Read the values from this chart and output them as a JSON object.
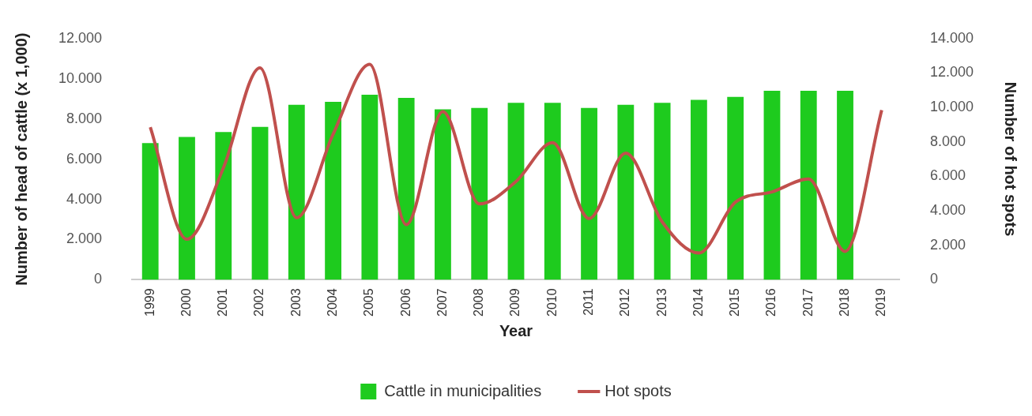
{
  "chart_data": {
    "type": "bar",
    "xlabel": "Year",
    "ylabel": "Number of head of cattle (x 1,000)",
    "y2label": "Number of hot spots",
    "categories": [
      "1999",
      "2000",
      "2001",
      "2002",
      "2003",
      "2004",
      "2005",
      "2006",
      "2007",
      "2008",
      "2009",
      "2010",
      "2011",
      "2012",
      "2013",
      "2014",
      "2015",
      "2016",
      "2017",
      "2018",
      "2019"
    ],
    "series": [
      {
        "name": "Cattle in municipalities",
        "color": "#1ecb1e",
        "values": [
          6800,
          7100,
          7350,
          7600,
          8700,
          8850,
          9200,
          9050,
          8480,
          8550,
          8800,
          8800,
          8550,
          8700,
          8800,
          8950,
          9100,
          9400,
          9400,
          9400,
          null
        ]
      },
      {
        "name": "Hot spots",
        "type": "line",
        "axis": "y2",
        "color": "#c0504d",
        "values": [
          8850,
          2350,
          6500,
          12300,
          3600,
          8450,
          12500,
          3200,
          9750,
          4400,
          5700,
          7950,
          3550,
          7350,
          3350,
          1550,
          4500,
          5100,
          5850,
          1650,
          9850
        ]
      }
    ],
    "ylim": [
      0,
      12000
    ],
    "yticks": [
      {
        "value": 0,
        "label": "0"
      },
      {
        "value": 2000,
        "label": "2.000"
      },
      {
        "value": 4000,
        "label": "4.000"
      },
      {
        "value": 6000,
        "label": "6.000"
      },
      {
        "value": 8000,
        "label": "8.000"
      },
      {
        "value": 10000,
        "label": "10.000"
      },
      {
        "value": 12000,
        "label": "12.000"
      }
    ],
    "y2lim": [
      0,
      14000
    ],
    "y2ticks": [
      {
        "value": 0,
        "label": "0"
      },
      {
        "value": 2000,
        "label": "2.000"
      },
      {
        "value": 4000,
        "label": "4.000"
      },
      {
        "value": 6000,
        "label": "6.000"
      },
      {
        "value": 8000,
        "label": "8.000"
      },
      {
        "value": 10000,
        "label": "10.000"
      },
      {
        "value": 12000,
        "label": "12.000"
      },
      {
        "value": 14000,
        "label": "14.000"
      }
    ],
    "marker": "none",
    "legend": "bottom"
  }
}
